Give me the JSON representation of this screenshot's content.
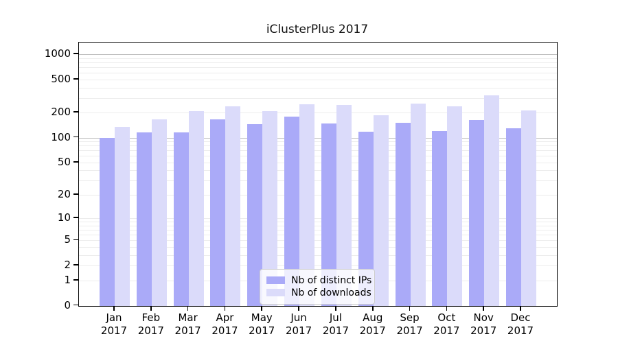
{
  "title": "iClusterPlus 2017",
  "colors": {
    "ips_bar": "#aaaaf8",
    "downloads_bar": "#dbdbfa",
    "grid_minor": "#ececec",
    "grid_major": "#bdbdbd",
    "axis": "#000000"
  },
  "legend": {
    "items": [
      {
        "label": "Nb of distinct IPs",
        "series_key": "ips"
      },
      {
        "label": "Nb of downloads",
        "series_key": "downloads"
      }
    ]
  },
  "chart_data": {
    "type": "bar",
    "title": "iClusterPlus 2017",
    "categories": [
      "Jan 2017",
      "Feb 2017",
      "Mar 2017",
      "Apr 2017",
      "May 2017",
      "Jun 2017",
      "Jul 2017",
      "Aug 2017",
      "Sep 2017",
      "Oct 2017",
      "Nov 2017",
      "Dec 2017"
    ],
    "month_labels": [
      "Jan",
      "Feb",
      "Mar",
      "Apr",
      "May",
      "Jun",
      "Jul",
      "Aug",
      "Sep",
      "Oct",
      "Nov",
      "Dec"
    ],
    "year_label": "2017",
    "series": [
      {
        "name": "Nb of distinct IPs",
        "values": [
          100,
          115,
          116,
          165,
          146,
          180,
          147,
          118,
          150,
          120,
          163,
          130
        ]
      },
      {
        "name": "Nb of downloads",
        "values": [
          135,
          165,
          210,
          238,
          210,
          250,
          245,
          187,
          258,
          237,
          320,
          214
        ]
      }
    ],
    "xlabel": "",
    "ylabel": "",
    "y_scale": "log1p",
    "y_ticks": [
      0,
      1,
      2,
      5,
      10,
      20,
      50,
      100,
      200,
      500,
      1000
    ],
    "ylim": [
      0,
      1380
    ],
    "grid": true,
    "legend_position": "lower center inside plot"
  }
}
